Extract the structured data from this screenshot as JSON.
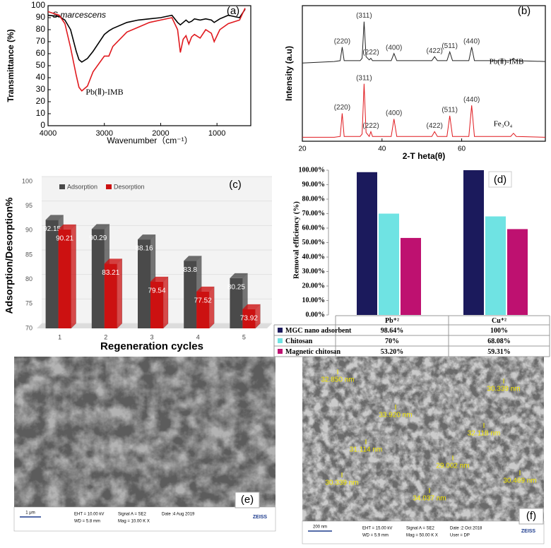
{
  "chart_data": [
    {
      "type": "line",
      "panel_label": "(a)",
      "x_label": "Wavenumber（cm⁻¹）",
      "y_label": "Transmittance (%)",
      "x": [
        4000,
        3800,
        3700,
        3600,
        3500,
        3450,
        3400,
        3300,
        3200,
        3000,
        2920,
        2850,
        2600,
        2400,
        2200,
        2000,
        1800,
        1700,
        1650,
        1600,
        1550,
        1500,
        1450,
        1400,
        1300,
        1200,
        1100,
        1050,
        950,
        800,
        600,
        500
      ],
      "series": [
        {
          "name": "S.marcescens",
          "color": "#000000",
          "values": [
            92,
            91,
            88,
            80,
            62,
            55,
            53,
            56,
            62,
            76,
            79,
            81,
            86,
            88,
            89,
            90,
            92,
            86,
            84,
            86,
            88,
            86,
            87,
            89,
            88,
            89,
            88,
            86,
            89,
            92,
            90,
            97
          ]
        },
        {
          "name": "Pb(Ⅱ)-IMB",
          "color": "#e0191e",
          "values": [
            95,
            92,
            85,
            65,
            42,
            32,
            29,
            33,
            45,
            58,
            58,
            66,
            78,
            82,
            86,
            88,
            90,
            80,
            61,
            72,
            75,
            68,
            74,
            76,
            73,
            80,
            77,
            70,
            80,
            85,
            88,
            98
          ]
        }
      ],
      "xlim": [
        4000,
        400
      ],
      "xticks": [
        4000,
        3000,
        2000,
        1000
      ],
      "ylim": [
        0,
        100
      ],
      "yticks": [
        0,
        10,
        20,
        30,
        40,
        50,
        60,
        70,
        80,
        90,
        100
      ]
    },
    {
      "type": "line",
      "panel_label": "(b)",
      "x_label": "2-T heta(θ)",
      "y_label": "Intensity (a.u)",
      "x": [
        20,
        28,
        29.5,
        30,
        30.5,
        34.5,
        35,
        35.5,
        36,
        36.8,
        37.2,
        37.6,
        42.3,
        43,
        43.7,
        52.5,
        53.2,
        53.9,
        56.3,
        57,
        57.7,
        61.8,
        62.5,
        63.2,
        72.3,
        73,
        73.7,
        81
      ],
      "series": [
        {
          "name": "Pb(Ⅱ)-IMB",
          "color": "#222222",
          "values": [
            98,
            100,
            101,
            118,
            101,
            101,
            104,
            150,
            106,
            102,
            104,
            101,
            101,
            110,
            101,
            101,
            106,
            101,
            101,
            112,
            101,
            101,
            118,
            101,
            101,
            104,
            101,
            100
          ],
          "peak_labels": [
            {
              "label": "(220)",
              "x": 30
            },
            {
              "label": "(311)",
              "x": 35.5
            },
            {
              "label": "(222)",
              "x": 37.2
            },
            {
              "label": "(400)",
              "x": 43
            },
            {
              "label": "(422)",
              "x": 53.2
            },
            {
              "label": "(511)",
              "x": 57
            },
            {
              "label": "(440)",
              "x": 62.5
            }
          ]
        },
        {
          "name": "Fe₃O₄",
          "color": "#e0191e",
          "values": [
            5,
            5,
            6,
            35,
            6,
            6,
            9,
            72,
            11,
            6,
            12,
            6,
            6,
            28,
            6,
            6,
            12,
            6,
            6,
            32,
            6,
            6,
            45,
            6,
            6,
            10,
            6,
            5
          ],
          "peak_labels": [
            {
              "label": "(220)",
              "x": 30
            },
            {
              "label": "(311)",
              "x": 35.5
            },
            {
              "label": "(222)",
              "x": 37.2
            },
            {
              "label": "(400)",
              "x": 43
            },
            {
              "label": "(422)",
              "x": 53.2
            },
            {
              "label": "(511)",
              "x": 57
            },
            {
              "label": "(440)",
              "x": 62.5
            }
          ]
        }
      ],
      "xlim": [
        20,
        81
      ],
      "xticks": [
        20,
        40,
        60
      ],
      "ylim": [
        0,
        170
      ]
    },
    {
      "type": "bar",
      "three_d": true,
      "panel_label": "(c)",
      "x_label": "Regeneration cycles",
      "y_label": "Adsorption/Desorption%",
      "categories": [
        "1",
        "2",
        "3",
        "4",
        "5"
      ],
      "series": [
        {
          "name": "Adsorption",
          "color": "#4a4a4a",
          "values": [
            92.15,
            90.29,
            88.16,
            83.8,
            80.25
          ]
        },
        {
          "name": "Desorption",
          "color": "#cc1111",
          "values": [
            90.21,
            83.21,
            79.54,
            77.52,
            73.92
          ]
        }
      ],
      "ylim": [
        70,
        100
      ],
      "yticks": [
        70,
        75,
        80,
        85,
        90,
        95,
        100
      ]
    },
    {
      "type": "bar",
      "data_table": true,
      "panel_label": "(d)",
      "y_label": "Removal efficiency (%)",
      "categories": [
        "Pb⁺²",
        "Cu⁺²"
      ],
      "series": [
        {
          "name": "MGC nano adsorbent",
          "color": "#1b1a5c",
          "values": [
            98.64,
            100
          ],
          "value_labels": [
            "98.64%",
            "100%"
          ]
        },
        {
          "name": "Chitosan",
          "color": "#6fe3e3",
          "values": [
            70,
            68.08
          ],
          "value_labels": [
            "70%",
            "68.08%"
          ]
        },
        {
          "name": "Magnetic chitosan",
          "color": "#be1170",
          "values": [
            53.2,
            59.31
          ],
          "value_labels": [
            "53.20%",
            "59.31%"
          ]
        }
      ],
      "ylim": [
        0,
        100
      ],
      "yticks": [
        {
          "value": 0,
          "label": "0.00%"
        },
        {
          "value": 10,
          "label": "10.00%"
        },
        {
          "value": 20,
          "label": "20.00%"
        },
        {
          "value": 30,
          "label": "30.00%"
        },
        {
          "value": 40,
          "label": "40.00%"
        },
        {
          "value": 50,
          "label": "50.00%"
        },
        {
          "value": 60,
          "label": "60.00%"
        },
        {
          "value": 70,
          "label": "70.00%"
        },
        {
          "value": 80,
          "label": "80.00%"
        },
        {
          "value": 90,
          "label": "90.00%"
        },
        {
          "value": 100,
          "label": "100.00%"
        }
      ]
    }
  ],
  "images": [
    {
      "panel_label": "(e)",
      "scale_bar": "1 μm",
      "info": [
        "EHT = 10.00 kV",
        "WD =  5.8 mm",
        "Signal A = SE2",
        "Mag =  10.00 K X",
        "Date :4 Aug 2019"
      ],
      "brand": "ZEISS"
    },
    {
      "panel_label": "(f)",
      "scale_bar": "200 nm",
      "info": [
        "EHT = 15.00 kV",
        "WD =  5.9 mm",
        "Signal A = SE2",
        "Mag =  50.00 K X",
        "Date :2 Oct 2018",
        "User = DP"
      ],
      "brand": "ZEISS",
      "measurements": [
        "32.850 nm",
        "30.339 nm",
        "33.920 nm",
        "32.118 nm",
        "31.114 nm",
        "29.002 nm",
        "30.339 nm",
        "30.469 nm",
        "34.037 nm"
      ]
    }
  ]
}
